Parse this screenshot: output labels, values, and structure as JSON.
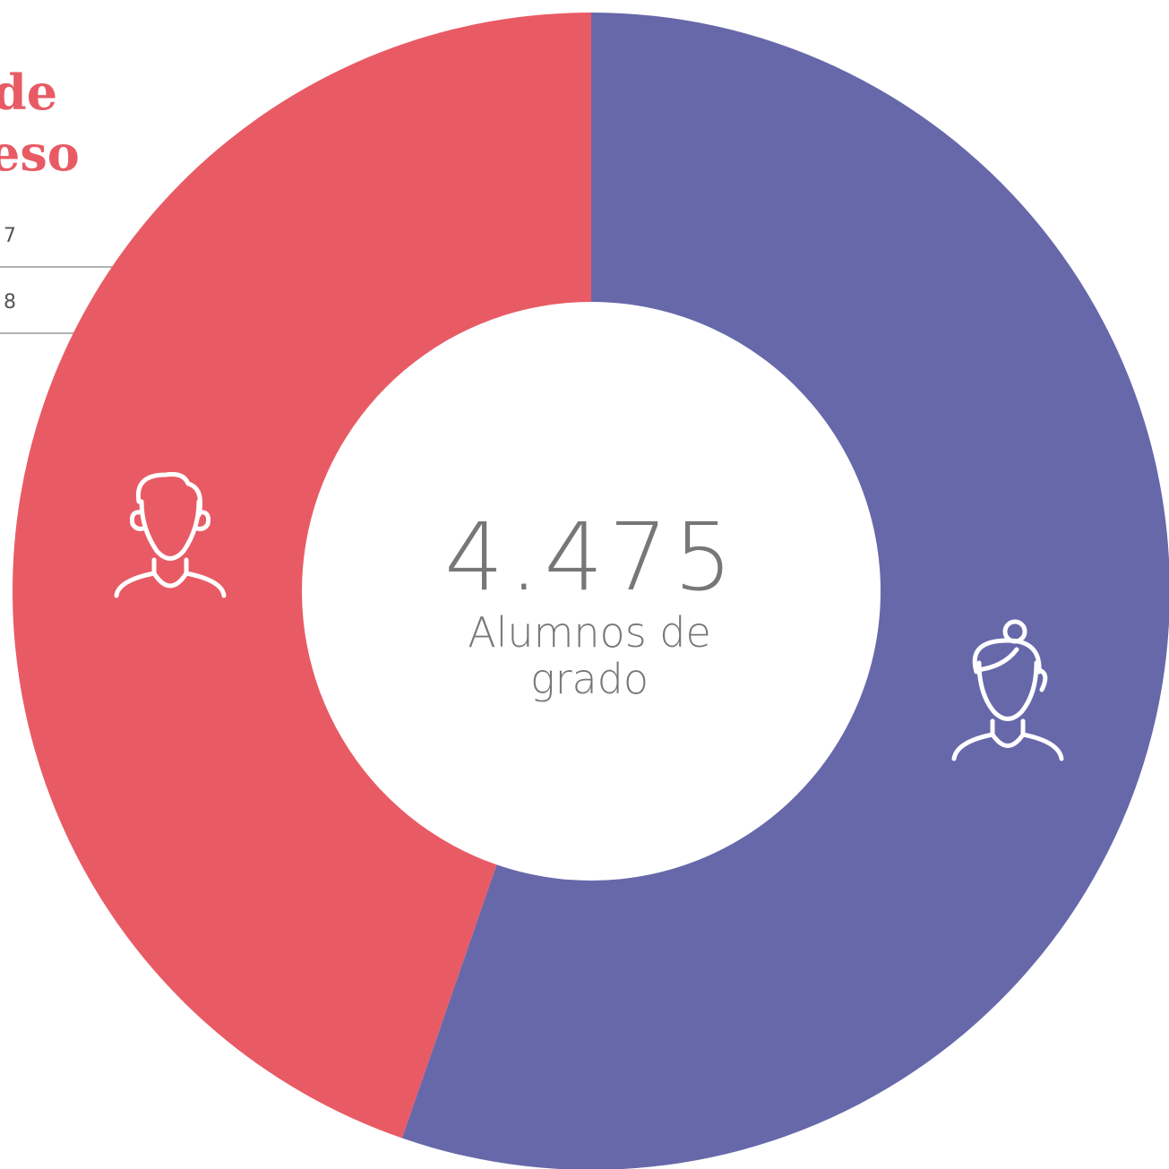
{
  "background_panel": {
    "title_lines": [
      "de",
      "eso"
    ],
    "rows": [
      "7",
      "8"
    ]
  },
  "chart_data": {
    "type": "donut",
    "values": [
      55.3,
      44.7
    ],
    "colors": [
      "#6768aa",
      "#e85b65"
    ],
    "center_value": "4.475",
    "center_label_lines": [
      "Alumnos de",
      "grado"
    ]
  }
}
